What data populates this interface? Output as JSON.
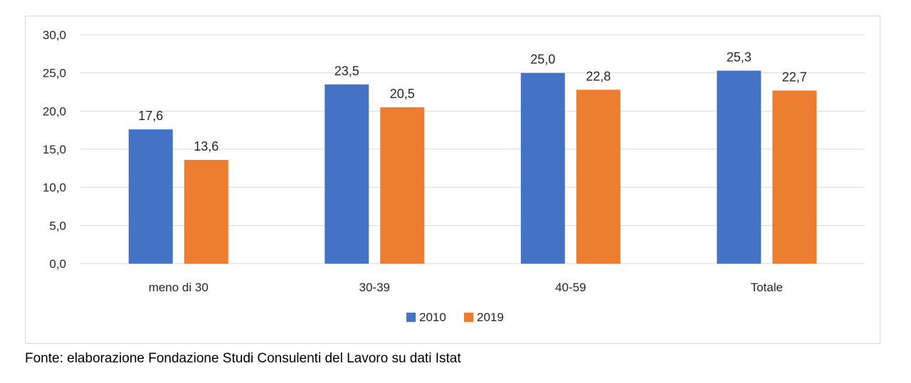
{
  "chart_data": {
    "type": "bar",
    "categories": [
      "meno di 30",
      "30-39",
      "40-59",
      "Totale"
    ],
    "series": [
      {
        "name": "2010",
        "values": [
          17.6,
          23.5,
          25.0,
          25.3
        ],
        "labels": [
          "17,6",
          "23,5",
          "25,0",
          "25,3"
        ],
        "color": "#4472c4"
      },
      {
        "name": "2019",
        "values": [
          13.6,
          20.5,
          22.8,
          22.7
        ],
        "labels": [
          "13,6",
          "20,5",
          "22,8",
          "22,7"
        ],
        "color": "#ed7d31"
      }
    ],
    "ylim": [
      0,
      30
    ],
    "yticks": [
      0,
      5,
      10,
      15,
      20,
      25,
      30
    ],
    "ytick_labels": [
      "0,0",
      "5,0",
      "10,0",
      "15,0",
      "20,0",
      "25,0",
      "30,0"
    ],
    "grid": true,
    "legend_position": "bottom",
    "title": "",
    "xlabel": "",
    "ylabel": ""
  },
  "source_note": "Fonte: elaborazione Fondazione Studi Consulenti del Lavoro su dati Istat",
  "colors": {
    "gridline": "#d9d9d9",
    "text": "#262626"
  }
}
